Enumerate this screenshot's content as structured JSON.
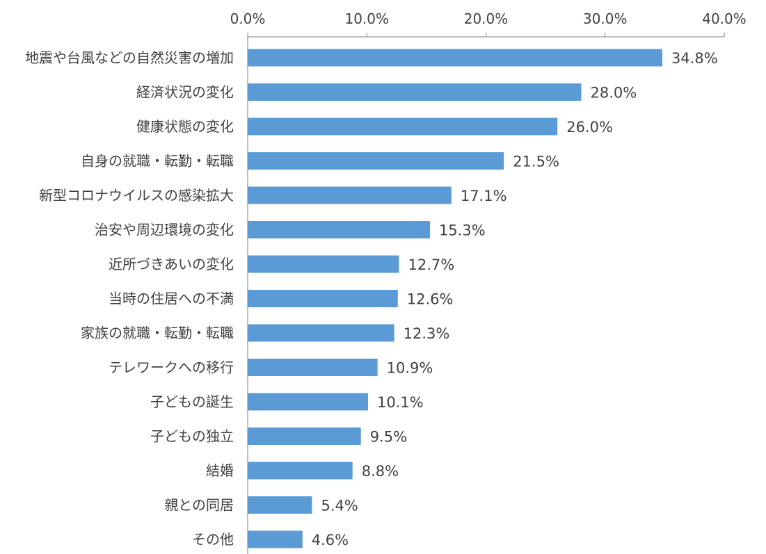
{
  "chart_data": {
    "type": "bar",
    "orientation": "horizontal",
    "categories": [
      "地震や台風などの自然災害の増加",
      "経済状況の変化",
      "健康状態の変化",
      "自身の就職・転勤・転職",
      "新型コロナウイルスの感染拡大",
      "治安や周辺環境の変化",
      "近所づきあいの変化",
      "当時の住居への不満",
      "家族の就職・転勤・転職",
      "テレワークへの移行",
      "子どもの誕生",
      "子どもの独立",
      "結婚",
      "親との同居",
      "その他"
    ],
    "values": [
      34.8,
      28.0,
      26.0,
      21.5,
      17.1,
      15.3,
      12.7,
      12.6,
      12.3,
      10.9,
      10.1,
      9.5,
      8.8,
      5.4,
      4.6
    ],
    "value_labels": [
      "34.8%",
      "28.0%",
      "26.0%",
      "21.5%",
      "17.1%",
      "15.3%",
      "12.7%",
      "12.6%",
      "12.3%",
      "10.9%",
      "10.1%",
      "9.5%",
      "8.8%",
      "5.4%",
      "4.6%"
    ],
    "xlim": [
      0,
      40
    ],
    "xticks": [
      0,
      10,
      20,
      30,
      40
    ],
    "xtick_labels": [
      "0.0%",
      "10.0%",
      "20.0%",
      "30.0%",
      "40.0%"
    ],
    "axis_position": "top",
    "grid": false,
    "bar_color": "#5B9BD5",
    "axis_color": "#7f7f7f",
    "text_color": "#404040"
  }
}
